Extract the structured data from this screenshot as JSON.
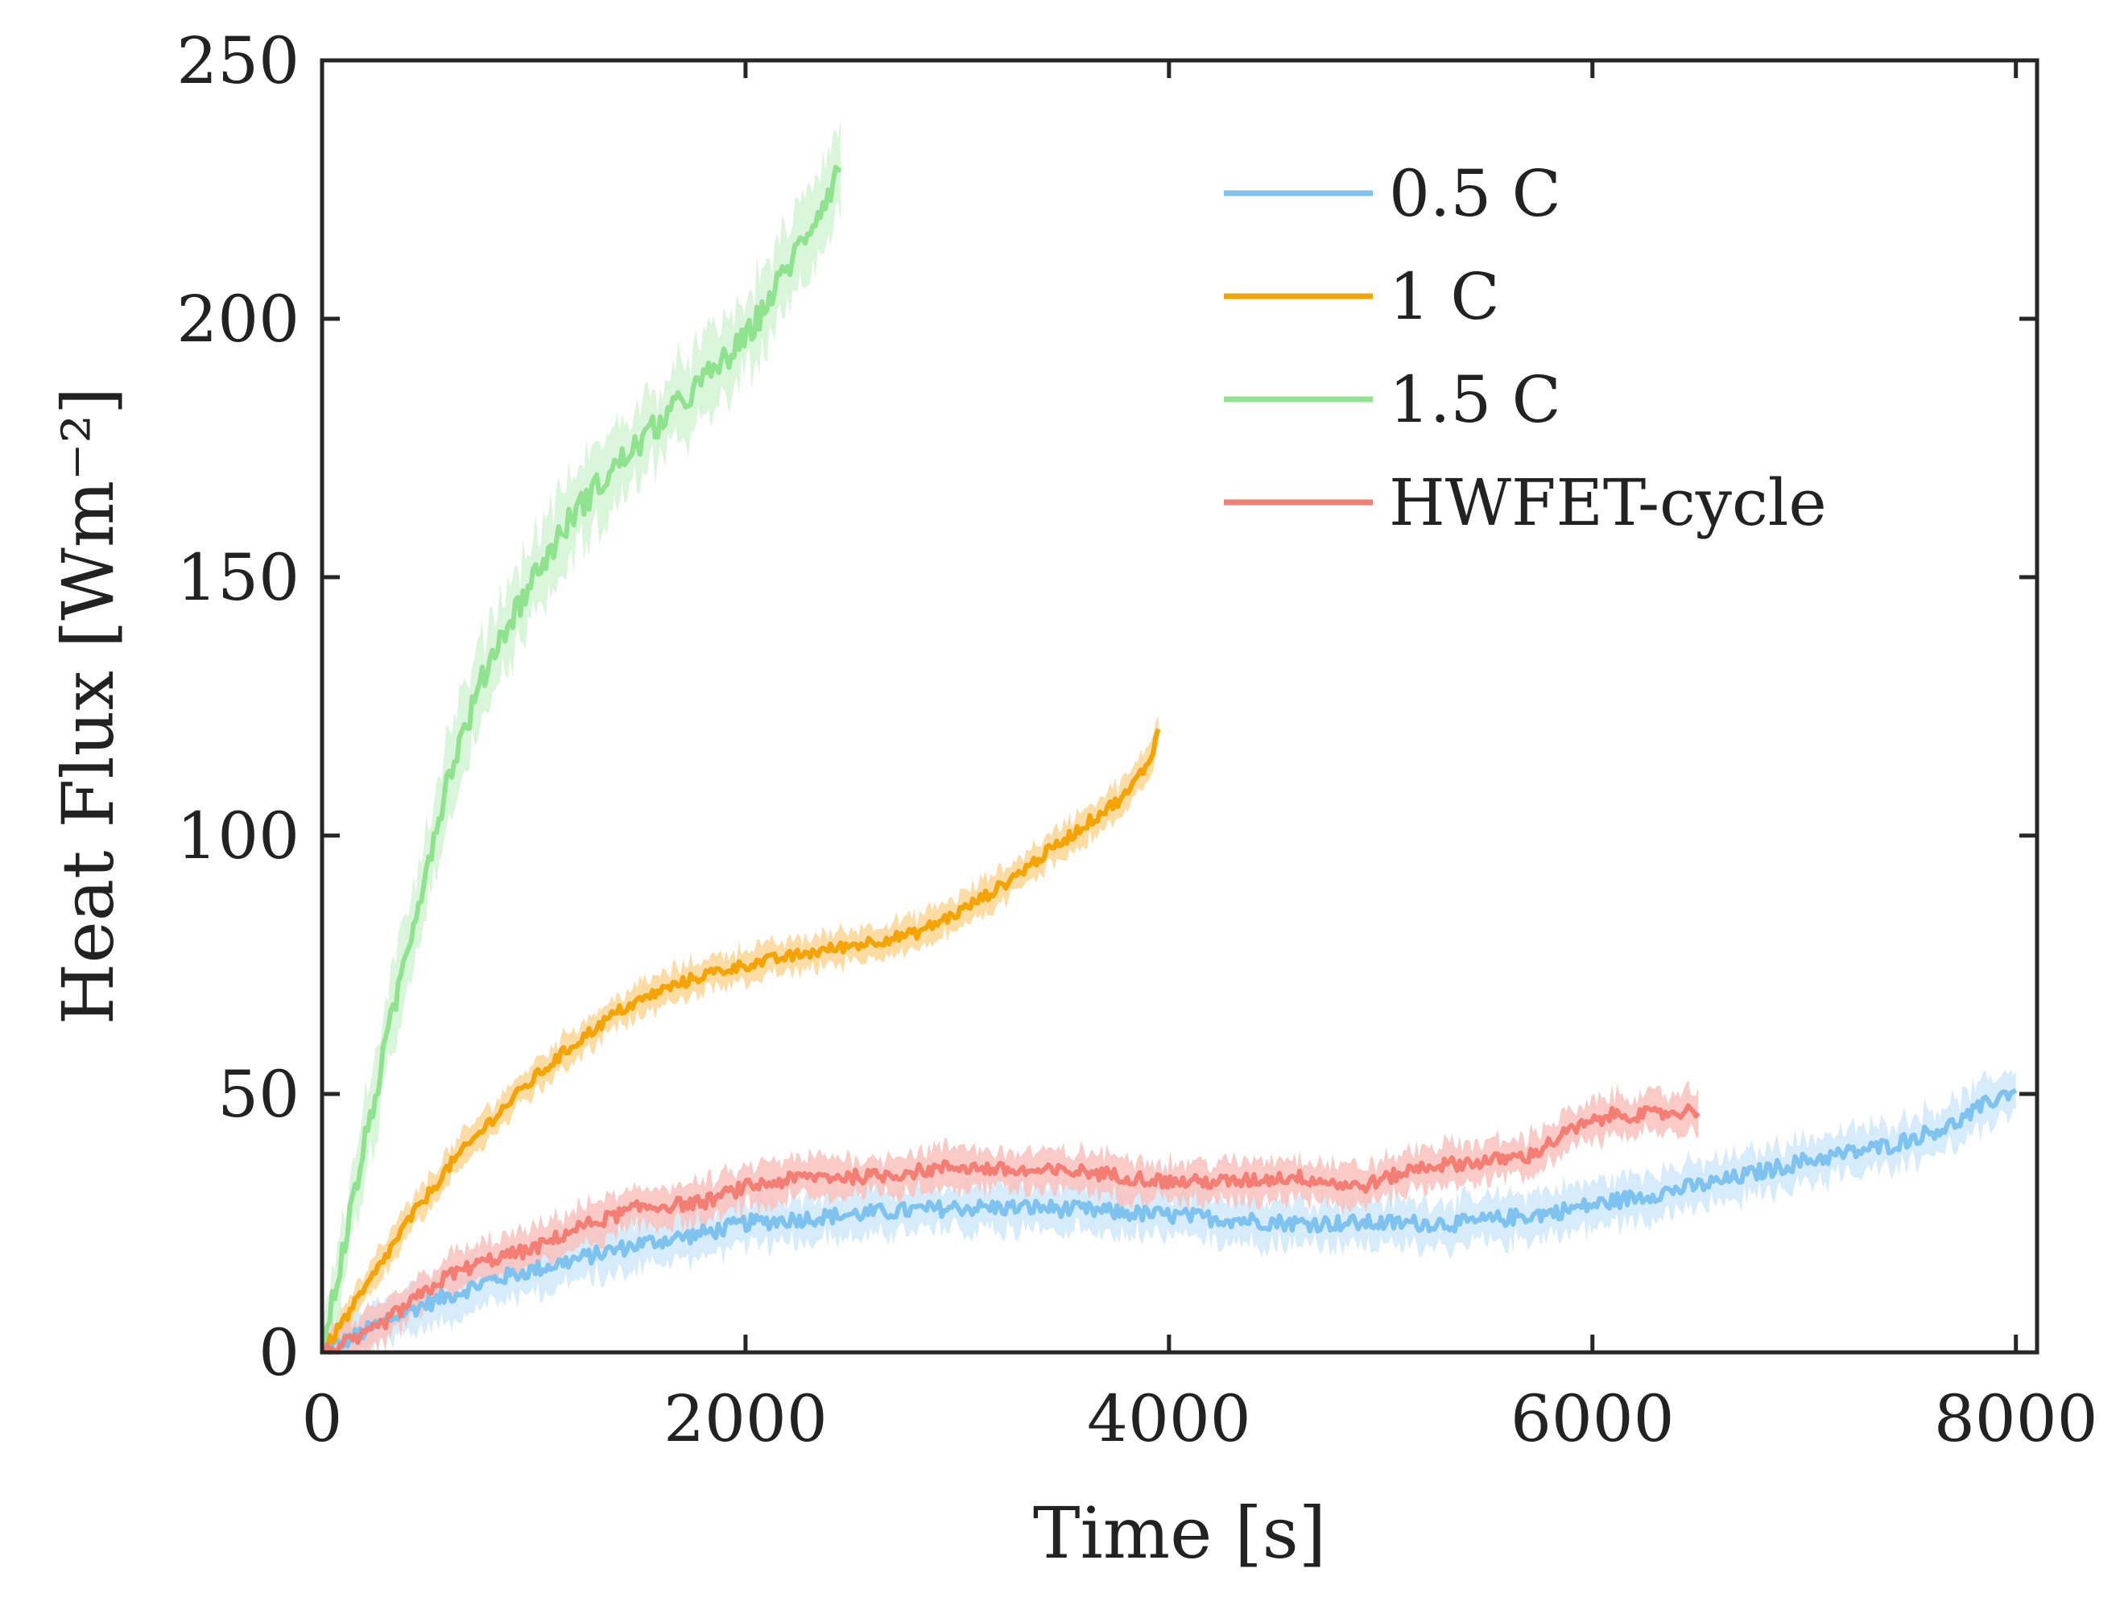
{
  "chart_data": {
    "type": "line",
    "xlabel": "Time [s]",
    "ylabel": "Heat Flux [Wm⁻²]",
    "xlim": [
      0,
      8100
    ],
    "ylim": [
      0,
      250
    ],
    "xticks": [
      0,
      2000,
      4000,
      6000,
      8000
    ],
    "xtick_labels": [
      "0",
      "2000",
      "4000",
      "6000",
      "8000"
    ],
    "yticks": [
      0,
      50,
      100,
      150,
      200,
      250
    ],
    "ytick_labels": [
      "0",
      "50",
      "100",
      "150",
      "200",
      "250"
    ],
    "grid": false,
    "legend_position": "top-right",
    "series": [
      {
        "name": "0.5 C",
        "color": "#7EC3F0",
        "band_color": "#CFE9FA",
        "noise": 3.5,
        "x": [
          0,
          200,
          400,
          600,
          800,
          1000,
          1200,
          1500,
          1800,
          2000,
          2300,
          2600,
          3000,
          3400,
          3800,
          4200,
          4600,
          5000,
          5400,
          5800,
          6200,
          6600,
          7000,
          7400,
          7700,
          7900,
          8000
        ],
        "y": [
          0,
          4,
          8,
          11,
          14,
          16,
          18,
          21,
          23,
          25,
          26,
          27,
          28,
          28,
          27,
          26,
          25,
          25,
          25,
          27,
          30,
          33,
          37,
          40,
          44,
          49,
          51
        ]
      },
      {
        "name": "1 C",
        "color": "#F5A300",
        "band_color": "#FCD693",
        "noise": 2.5,
        "x": [
          0,
          200,
          400,
          600,
          800,
          1000,
          1200,
          1400,
          1600,
          1800,
          2000,
          2400,
          2800,
          3000,
          3200,
          3400,
          3600,
          3800,
          3900,
          3950
        ],
        "y": [
          0,
          12,
          25,
          36,
          45,
          53,
          60,
          66,
          70,
          73,
          75,
          78,
          81,
          85,
          90,
          96,
          102,
          108,
          114,
          120
        ]
      },
      {
        "name": "1.5 C",
        "color": "#8FE38F",
        "band_color": "#D3F5D3",
        "noise": 6,
        "x": [
          0,
          200,
          400,
          600,
          800,
          1000,
          1200,
          1400,
          1600,
          1800,
          2000,
          2200,
          2400,
          2450
        ],
        "y": [
          0,
          40,
          78,
          112,
          135,
          150,
          163,
          172,
          180,
          188,
          196,
          210,
          225,
          230
        ]
      },
      {
        "name": "HWFET-cycle",
        "color": "#F47E74",
        "band_color": "#F9C2BC",
        "noise": 3,
        "x": [
          0,
          200,
          400,
          600,
          800,
          1000,
          1200,
          1500,
          1800,
          2000,
          2300,
          2600,
          3000,
          3300,
          3600,
          4000,
          4300,
          4600,
          4900,
          5200,
          5500,
          5700,
          5900,
          6100,
          6300,
          6500
        ],
        "y": [
          0,
          3,
          9,
          15,
          18,
          20,
          24,
          28,
          29,
          32,
          34,
          34,
          36,
          35,
          35,
          33,
          33,
          34,
          32,
          36,
          37,
          38,
          43,
          46,
          46,
          47
        ]
      }
    ]
  }
}
